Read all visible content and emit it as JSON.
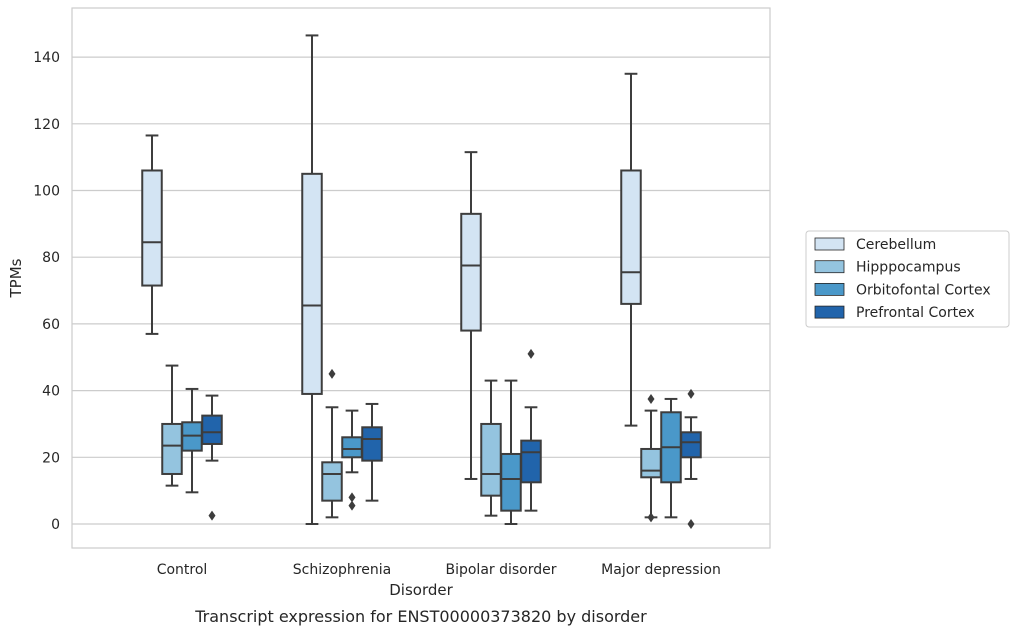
{
  "chart_data": {
    "type": "box",
    "title": "",
    "caption": "Transcript expression for ENST00000373820 by disorder",
    "xlabel": "Disorder",
    "ylabel": "TPMs",
    "ylim": [
      -7,
      155
    ],
    "yticks": [
      0,
      20,
      40,
      60,
      80,
      100,
      120,
      140
    ],
    "grid": "horizontal",
    "legend_position": "right",
    "categories": [
      "Control",
      "Schizophrenia",
      "Bipolar disorder",
      "Major depression"
    ],
    "series": [
      {
        "name": "Cerebellum",
        "color": "#d3e4f3",
        "boxes": [
          {
            "whislo": 57,
            "q1": 71.5,
            "med": 84.5,
            "q3": 106,
            "whishi": 116.5,
            "fliers": []
          },
          {
            "whislo": 0,
            "q1": 39,
            "med": 65.5,
            "q3": 105,
            "whishi": 146.5,
            "fliers": []
          },
          {
            "whislo": 13.5,
            "q1": 58,
            "med": 77.5,
            "q3": 93,
            "whishi": 111.5,
            "fliers": []
          },
          {
            "whislo": 29.5,
            "q1": 66,
            "med": 75.5,
            "q3": 106,
            "whishi": 135,
            "fliers": []
          }
        ]
      },
      {
        "name": "Hipppocampus",
        "color": "#94c4df",
        "boxes": [
          {
            "whislo": 11.5,
            "q1": 15,
            "med": 23.5,
            "q3": 30,
            "whishi": 47.5,
            "fliers": []
          },
          {
            "whislo": 2,
            "q1": 7,
            "med": 15,
            "q3": 18.5,
            "whishi": 35,
            "fliers": [
              45
            ]
          },
          {
            "whislo": 2.5,
            "q1": 8.5,
            "med": 15,
            "q3": 30,
            "whishi": 43,
            "fliers": []
          },
          {
            "whislo": 2,
            "q1": 14,
            "med": 16,
            "q3": 22.5,
            "whishi": 34,
            "fliers": [
              2,
              37.5
            ]
          }
        ]
      },
      {
        "name": "Orbitofontal Cortex",
        "color": "#4a98c9",
        "boxes": [
          {
            "whislo": 9.5,
            "q1": 22,
            "med": 26.5,
            "q3": 30.5,
            "whishi": 40.5,
            "fliers": []
          },
          {
            "whislo": 15.5,
            "q1": 20,
            "med": 22.5,
            "q3": 26,
            "whishi": 34,
            "fliers": [
              8,
              5.5
            ]
          },
          {
            "whislo": 0,
            "q1": 4,
            "med": 13.5,
            "q3": 21,
            "whishi": 43,
            "fliers": []
          },
          {
            "whislo": 2,
            "q1": 12.5,
            "med": 23,
            "q3": 33.5,
            "whishi": 37.5,
            "fliers": []
          }
        ]
      },
      {
        "name": "Prefrontal Cortex",
        "color": "#2164ab",
        "boxes": [
          {
            "whislo": 19,
            "q1": 24,
            "med": 27.5,
            "q3": 32.5,
            "whishi": 38.5,
            "fliers": [
              2.5
            ]
          },
          {
            "whislo": 7,
            "q1": 19,
            "med": 25.5,
            "q3": 29,
            "whishi": 36,
            "fliers": []
          },
          {
            "whislo": 4,
            "q1": 12.5,
            "med": 21.5,
            "q3": 25,
            "whishi": 35,
            "fliers": [
              51
            ]
          },
          {
            "whislo": 13.5,
            "q1": 20,
            "med": 24.5,
            "q3": 27.5,
            "whishi": 32,
            "fliers": [
              39,
              0
            ]
          }
        ]
      }
    ]
  }
}
